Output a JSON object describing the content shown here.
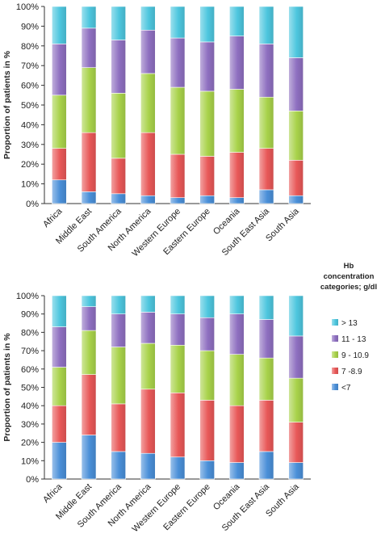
{
  "legend": {
    "title_lines": [
      "Hb",
      "concentration",
      "categories; g/dl"
    ],
    "items": [
      {
        "label": "> 13",
        "color": "#4dc6de"
      },
      {
        "label": "11 - 13",
        "color": "#8e6fc0"
      },
      {
        "label": "9 - 10.9",
        "color": "#a8d24a"
      },
      {
        "label": "7 -8.9",
        "color": "#e85858"
      },
      {
        "label": "<7",
        "color": "#4a8fd8"
      }
    ]
  },
  "chart_data": [
    {
      "type": "bar",
      "stacked": true,
      "ylabel": "Proportion of patients in %",
      "ylim": [
        0,
        100
      ],
      "yticks": [
        "0%",
        "10%",
        "20%",
        "30%",
        "40%",
        "50%",
        "60%",
        "70%",
        "80%",
        "90%",
        "100%"
      ],
      "categories": [
        "Africa",
        "Middle East",
        "South America",
        "North America",
        "Western Europe",
        "Eastern Europe",
        "Oceania",
        "South East Asia",
        "South Asia"
      ],
      "series": [
        {
          "name": "<7",
          "color": "#4a8fd8",
          "values": [
            12,
            6,
            5,
            4,
            3,
            4,
            3,
            7,
            4
          ]
        },
        {
          "name": "7 -8.9",
          "color": "#e85858",
          "values": [
            16,
            30,
            18,
            32,
            22,
            20,
            23,
            21,
            18
          ]
        },
        {
          "name": "9 - 10.9",
          "color": "#a8d24a",
          "values": [
            27,
            33,
            33,
            30,
            34,
            33,
            32,
            26,
            25
          ]
        },
        {
          "name": "11 - 13",
          "color": "#8e6fc0",
          "values": [
            26,
            20,
            27,
            22,
            25,
            25,
            27,
            27,
            27
          ]
        },
        {
          "name": "> 13",
          "color": "#4dc6de",
          "values": [
            19,
            11,
            17,
            12,
            16,
            18,
            15,
            19,
            26
          ]
        }
      ],
      "grid": false,
      "legend": "right"
    },
    {
      "type": "bar",
      "stacked": true,
      "ylabel": "Proportion of patients in %",
      "ylim": [
        0,
        100
      ],
      "yticks": [
        "0%",
        "10%",
        "20%",
        "30%",
        "40%",
        "50%",
        "60%",
        "70%",
        "80%",
        "90%",
        "100%"
      ],
      "categories": [
        "Africa",
        "Middle East",
        "South America",
        "North America",
        "Western Europe",
        "Eastern Europe",
        "Oceania",
        "South East Asia",
        "South Asia"
      ],
      "series": [
        {
          "name": "<7",
          "color": "#4a8fd8",
          "values": [
            20,
            24,
            15,
            14,
            12,
            10,
            9,
            15,
            9
          ]
        },
        {
          "name": "7 -8.9",
          "color": "#e85858",
          "values": [
            20,
            33,
            26,
            35,
            35,
            33,
            31,
            28,
            22
          ]
        },
        {
          "name": "9 - 10.9",
          "color": "#a8d24a",
          "values": [
            21,
            24,
            31,
            25,
            26,
            27,
            28,
            23,
            24
          ]
        },
        {
          "name": "11 - 13",
          "color": "#8e6fc0",
          "values": [
            22,
            13,
            18,
            17,
            17,
            18,
            22,
            21,
            23
          ]
        },
        {
          "name": "> 13",
          "color": "#4dc6de",
          "values": [
            17,
            6,
            10,
            9,
            10,
            12,
            10,
            13,
            22
          ]
        }
      ],
      "grid": false,
      "legend": "right"
    }
  ]
}
